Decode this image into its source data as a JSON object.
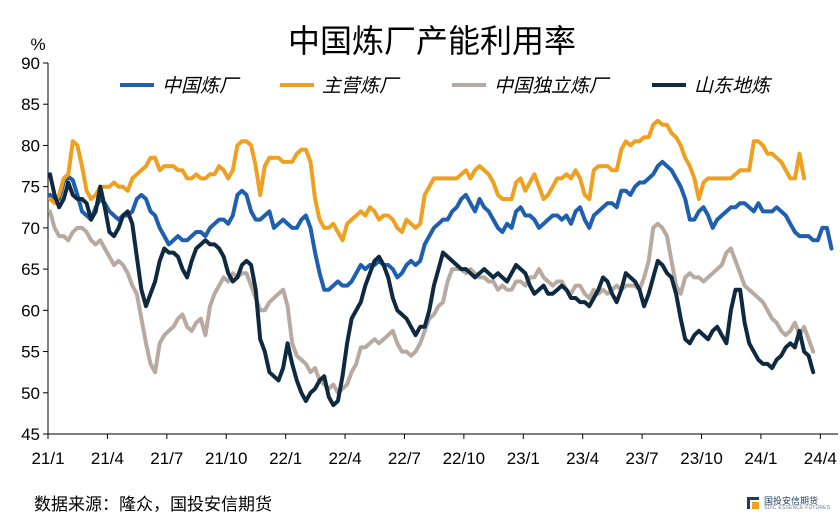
{
  "chart_data": {
    "type": "line",
    "title": "中国炼厂产能利用率",
    "unit": "%",
    "ylim": [
      45,
      90
    ],
    "yticks": [
      45,
      50,
      55,
      60,
      65,
      70,
      75,
      80,
      85,
      90
    ],
    "xticks": [
      "21/1",
      "21/4",
      "21/7",
      "21/10",
      "22/1",
      "22/4",
      "22/7",
      "22/10",
      "23/1",
      "23/4",
      "23/7",
      "23/10",
      "24/1",
      "24/4"
    ],
    "x_unit": "week index (weekly data from 21/1 to 24/6)",
    "grid": false,
    "legend_position": "top",
    "series": [
      {
        "name": "中国炼厂",
        "color": "#1f5fb0",
        "values": [
          74.0,
          73.5,
          73.5,
          75.5,
          76.2,
          75.8,
          74.0,
          72.0,
          71.5,
          71.0,
          72.5,
          73.5,
          73.0,
          72.0,
          71.5,
          71.0,
          71.5,
          71.5,
          72.0,
          73.5,
          74.0,
          73.5,
          72.0,
          71.5,
          70.0,
          69.0,
          68.0,
          68.5,
          69.0,
          68.5,
          68.5,
          69.0,
          69.5,
          69.5,
          69.0,
          70.0,
          70.5,
          71.0,
          71.0,
          70.5,
          71.5,
          74.0,
          74.5,
          74.0,
          72.0,
          71.0,
          71.0,
          71.5,
          72.0,
          70.0,
          70.5,
          71.0,
          70.5,
          70.0,
          70.0,
          71.0,
          71.5,
          70.0,
          67.0,
          64.5,
          62.5,
          62.5,
          63.0,
          63.5,
          63.0,
          63.0,
          63.5,
          64.5,
          65.5,
          65.0,
          65.5,
          65.5,
          66.0,
          65.5,
          65.5,
          65.0,
          64.0,
          64.5,
          65.5,
          66.0,
          65.5,
          66.0,
          68.0,
          69.0,
          70.0,
          70.5,
          71.0,
          71.0,
          72.0,
          72.5,
          73.5,
          74.0,
          73.0,
          72.0,
          73.5,
          72.5,
          72.0,
          71.0,
          70.0,
          69.5,
          70.5,
          70.0,
          72.0,
          72.5,
          71.5,
          71.5,
          71.0,
          70.0,
          70.5,
          71.0,
          71.5,
          71.5,
          71.0,
          71.5,
          70.5,
          72.0,
          72.5,
          71.0,
          70.0,
          71.5,
          72.0,
          72.5,
          73.0,
          73.0,
          72.5,
          74.5,
          74.5,
          74.0,
          75.0,
          75.5,
          75.5,
          76.0,
          76.5,
          77.5,
          78.0,
          77.5,
          77.0,
          76.0,
          75.0,
          73.5,
          71.0,
          71.0,
          72.0,
          72.5,
          71.5,
          70.0,
          71.0,
          71.5,
          72.0,
          72.5,
          72.5,
          73.0,
          73.0,
          72.5,
          72.0,
          73.0,
          72.0,
          72.0,
          72.0,
          72.5,
          72.0,
          71.5,
          70.5,
          69.5,
          69.0,
          69.0,
          69.0,
          68.5,
          68.5,
          70.0,
          70.0,
          67.5
        ]
      },
      {
        "name": "主营炼厂",
        "color": "#f0a020",
        "values": [
          73.5,
          73.0,
          74.0,
          76.0,
          76.5,
          80.5,
          80.0,
          77.5,
          74.5,
          73.5,
          74.0,
          75.0,
          75.0,
          75.0,
          75.5,
          75.0,
          75.0,
          74.5,
          76.0,
          76.5,
          77.0,
          77.5,
          78.5,
          78.5,
          77.0,
          77.5,
          77.5,
          77.5,
          77.0,
          77.0,
          76.0,
          76.0,
          76.5,
          76.0,
          76.0,
          76.5,
          76.5,
          77.5,
          77.0,
          76.0,
          77.0,
          80.0,
          80.5,
          80.5,
          80.0,
          77.5,
          74.0,
          77.5,
          78.5,
          78.5,
          78.5,
          78.0,
          78.0,
          78.0,
          79.0,
          79.5,
          79.5,
          78.0,
          73.5,
          71.0,
          70.0,
          70.0,
          70.5,
          69.5,
          68.5,
          70.5,
          71.0,
          71.5,
          72.0,
          71.5,
          72.5,
          72.0,
          71.0,
          71.5,
          71.5,
          71.0,
          70.0,
          69.5,
          71.0,
          70.5,
          70.0,
          70.5,
          74.0,
          75.0,
          76.0,
          76.0,
          76.0,
          76.0,
          76.0,
          76.0,
          76.5,
          77.0,
          76.0,
          77.0,
          77.5,
          77.0,
          76.5,
          75.5,
          74.0,
          73.5,
          73.5,
          73.5,
          75.5,
          76.0,
          74.5,
          75.5,
          76.5,
          75.0,
          73.5,
          74.0,
          75.0,
          76.0,
          76.0,
          76.5,
          76.0,
          77.0,
          76.0,
          74.0,
          73.5,
          77.0,
          77.5,
          77.5,
          77.5,
          77.0,
          77.0,
          79.5,
          80.5,
          80.0,
          80.5,
          80.5,
          81.0,
          81.0,
          82.5,
          83.0,
          82.5,
          82.5,
          81.5,
          81.0,
          80.0,
          78.5,
          77.5,
          76.0,
          73.5,
          75.5,
          76.0,
          76.0,
          76.0,
          76.0,
          76.0,
          76.0,
          76.5,
          77.0,
          77.0,
          77.0,
          80.5,
          80.5,
          80.0,
          79.0,
          79.0,
          78.5,
          78.0,
          77.0,
          76.0,
          76.0,
          79.0,
          76.0
        ]
      },
      {
        "name": "中国独立炼厂",
        "color": "#b8aaa0",
        "values": [
          72.0,
          70.0,
          69.0,
          69.0,
          68.5,
          69.5,
          70.0,
          70.0,
          69.5,
          68.5,
          68.0,
          68.5,
          67.5,
          66.5,
          65.5,
          66.0,
          65.5,
          64.5,
          63.0,
          62.0,
          59.0,
          56.0,
          53.5,
          52.5,
          56.0,
          57.0,
          57.5,
          58.0,
          59.0,
          59.5,
          58.0,
          57.5,
          58.5,
          59.0,
          57.0,
          60.5,
          62.0,
          63.0,
          64.0,
          63.5,
          64.5,
          64.0,
          64.5,
          64.5,
          63.0,
          61.5,
          60.0,
          60.0,
          61.0,
          61.5,
          62.0,
          62.5,
          60.5,
          56.0,
          54.5,
          54.0,
          53.5,
          52.5,
          53.0,
          51.5,
          51.0,
          50.5,
          51.0,
          50.0,
          50.5,
          51.0,
          52.5,
          53.5,
          55.5,
          55.5,
          56.0,
          56.5,
          56.0,
          56.5,
          57.0,
          57.5,
          56.0,
          55.0,
          55.0,
          54.5,
          55.0,
          56.0,
          57.5,
          59.0,
          59.5,
          60.5,
          61.0,
          63.5,
          65.0,
          65.0,
          65.0,
          64.5,
          65.0,
          64.5,
          64.0,
          64.0,
          63.5,
          63.5,
          62.5,
          63.0,
          62.5,
          62.5,
          63.5,
          63.5,
          63.0,
          64.0,
          64.0,
          65.0,
          64.0,
          63.5,
          63.0,
          63.5,
          63.5,
          62.5,
          62.0,
          63.0,
          63.0,
          62.0,
          61.5,
          62.5,
          62.0,
          62.5,
          62.0,
          62.5,
          63.0,
          62.5,
          63.0,
          63.0,
          63.0,
          62.5,
          64.0,
          66.0,
          70.0,
          70.5,
          70.0,
          69.0,
          66.0,
          63.0,
          62.0,
          64.0,
          64.5,
          64.0,
          64.0,
          63.5,
          64.0,
          64.5,
          65.0,
          65.5,
          67.0,
          67.5,
          66.0,
          64.5,
          63.0,
          62.5,
          62.0,
          61.5,
          61.0,
          60.0,
          59.0,
          58.5,
          57.5,
          57.0,
          57.5,
          58.5,
          57.0,
          58.0,
          56.5,
          55.0
        ]
      },
      {
        "name": "山东地炼",
        "color": "#0f2a40",
        "values": [
          76.5,
          74.0,
          72.5,
          73.5,
          75.5,
          74.0,
          73.5,
          73.5,
          73.0,
          71.0,
          72.0,
          75.0,
          72.5,
          69.5,
          69.0,
          70.0,
          71.5,
          72.0,
          70.5,
          66.5,
          62.5,
          60.5,
          62.0,
          63.5,
          66.0,
          67.5,
          67.0,
          67.0,
          66.5,
          65.0,
          64.0,
          66.0,
          67.5,
          68.0,
          68.5,
          68.0,
          68.0,
          67.5,
          66.5,
          64.5,
          63.5,
          64.0,
          65.5,
          66.0,
          65.5,
          62.5,
          56.5,
          55.0,
          52.5,
          52.0,
          51.5,
          53.0,
          56.0,
          53.5,
          51.5,
          50.0,
          49.0,
          50.0,
          50.5,
          51.5,
          52.0,
          49.5,
          48.5,
          49.0,
          52.0,
          56.0,
          59.0,
          60.0,
          61.0,
          63.0,
          64.5,
          66.0,
          66.5,
          65.5,
          64.0,
          61.5,
          60.0,
          59.5,
          59.0,
          58.0,
          57.0,
          58.0,
          58.0,
          60.0,
          63.0,
          65.0,
          67.0,
          66.5,
          66.0,
          65.5,
          65.0,
          65.0,
          64.5,
          64.0,
          64.5,
          65.0,
          64.5,
          64.0,
          64.5,
          64.0,
          63.5,
          64.5,
          65.5,
          65.0,
          64.5,
          63.0,
          62.0,
          62.5,
          63.0,
          62.0,
          62.0,
          62.5,
          63.0,
          62.5,
          61.5,
          61.5,
          61.0,
          61.0,
          60.5,
          61.5,
          62.5,
          64.0,
          63.5,
          62.0,
          61.0,
          62.5,
          64.5,
          64.0,
          63.5,
          62.5,
          60.5,
          62.0,
          64.0,
          66.0,
          65.5,
          64.5,
          64.0,
          62.0,
          59.0,
          56.5,
          56.0,
          57.0,
          57.5,
          57.0,
          56.5,
          57.5,
          58.0,
          57.0,
          56.0,
          60.0,
          62.5,
          62.5,
          58.5,
          56.0,
          55.0,
          54.0,
          53.5,
          53.5,
          53.0,
          54.0,
          54.5,
          55.5,
          56.0,
          55.5,
          57.5,
          55.0,
          54.5,
          52.5
        ]
      }
    ]
  },
  "source_text": "数据来源：隆众，国投安信期货",
  "logo": {
    "cn": "国投安信期货",
    "en": "SDIC ESSENCE FUTURES",
    "color": "#1f3a5a"
  }
}
